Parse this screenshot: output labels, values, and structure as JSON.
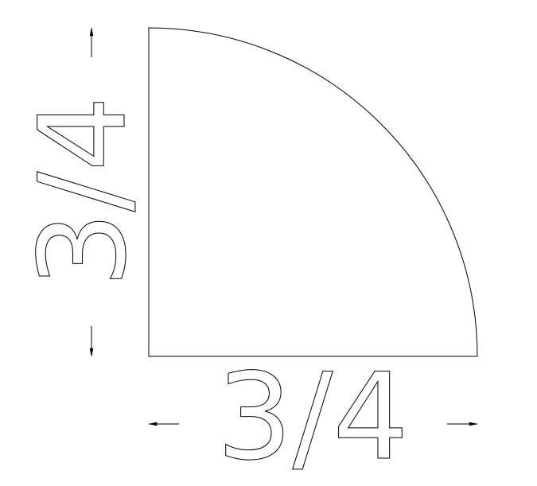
{
  "dimensions": {
    "horizontal": {
      "label": "3/4"
    },
    "vertical": {
      "label": "3/4"
    }
  }
}
